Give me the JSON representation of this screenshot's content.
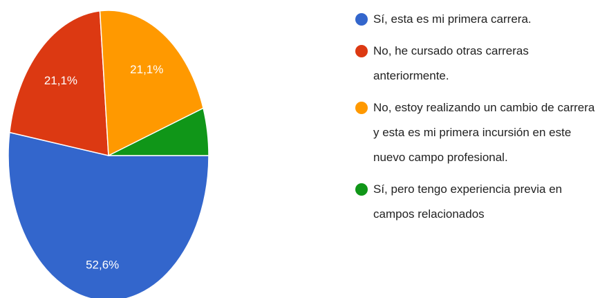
{
  "chart_data": {
    "type": "pie",
    "categories": [
      "Sí, esta es mi primera carrera.",
      "No, he cursado otras carreras anteriormente.",
      "No, estoy realizando un cambio de carrera y esta es mi primera incursión en este nuevo campo profesional.",
      "Sí, pero tengo experiencia previa en campos relacionados"
    ],
    "values": [
      52.6,
      21.1,
      21.1,
      5.3
    ],
    "value_labels": [
      "52,6%",
      "21,1%",
      "21,1%",
      null
    ],
    "colors": [
      "#3366cc",
      "#dc3912",
      "#ff9900",
      "#109618"
    ]
  }
}
